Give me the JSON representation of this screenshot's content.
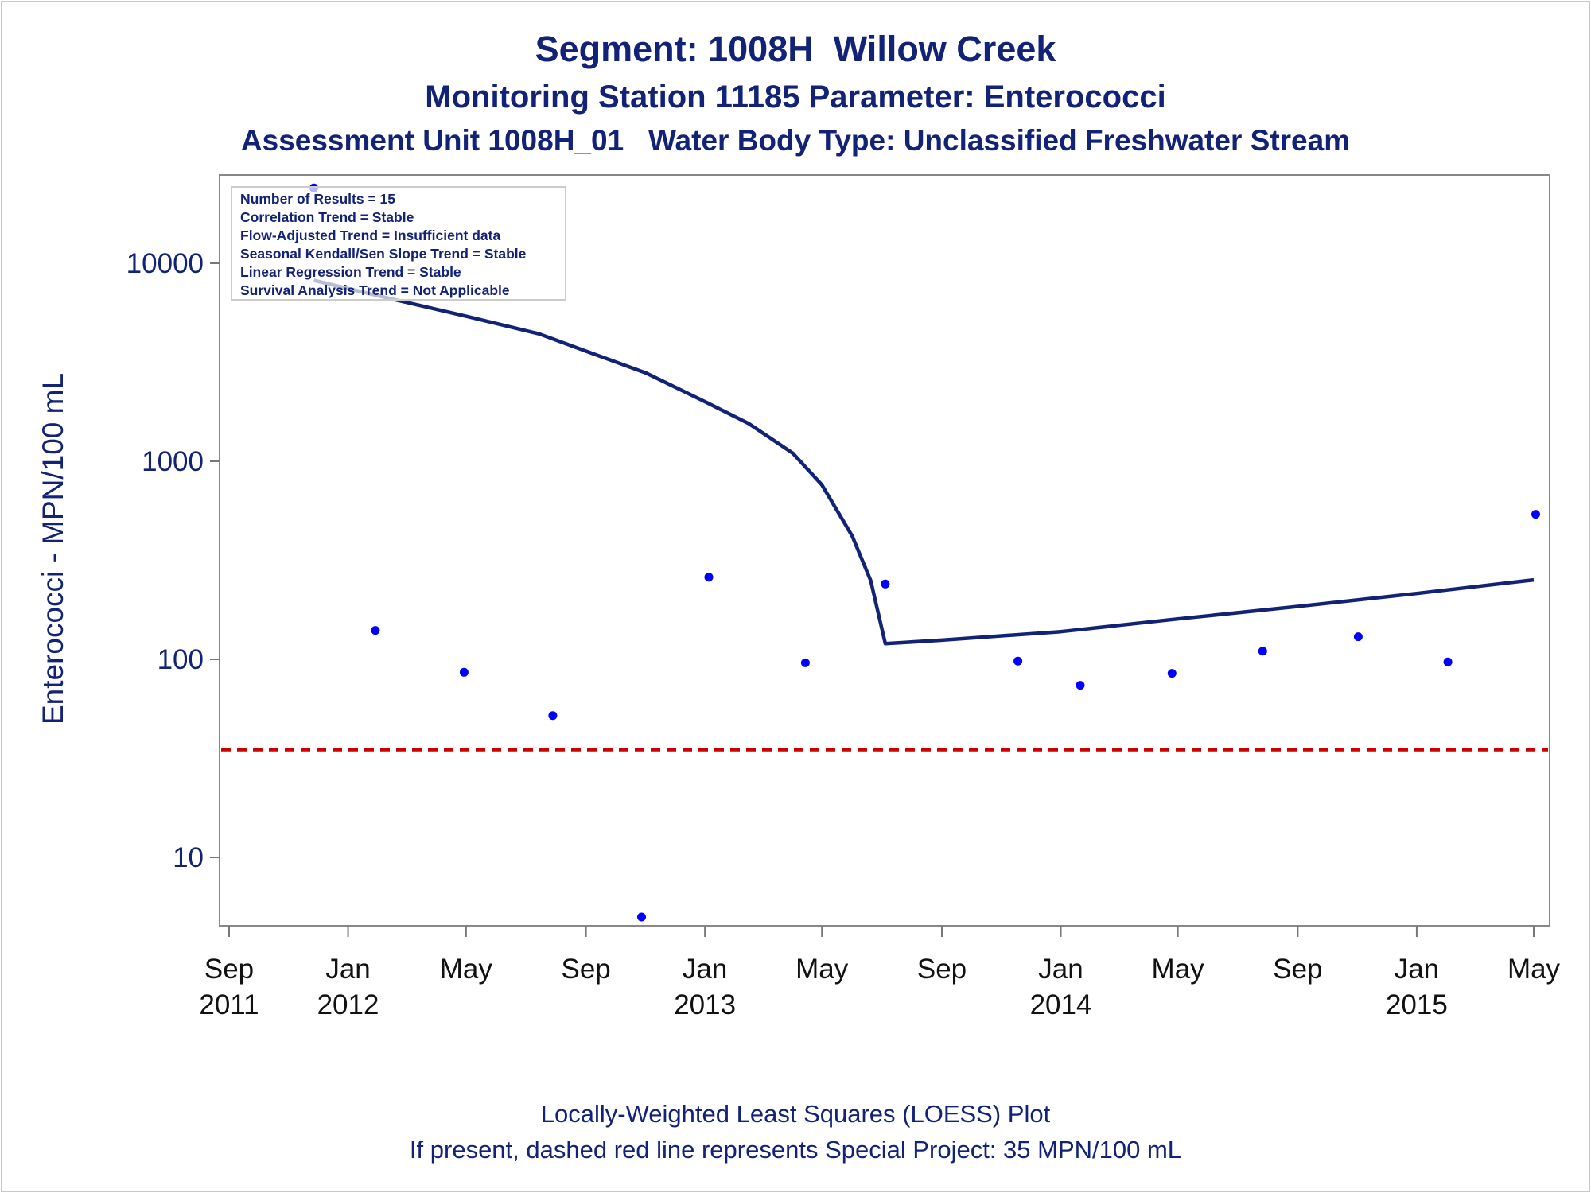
{
  "header": {
    "title": "Segment: 1008H  Willow Creek",
    "subtitle": "Monitoring Station 11185 Parameter: Enterococci",
    "subtitle2": "Assessment Unit 1008H_01   Water Body Type: Unclassified Freshwater Stream"
  },
  "footer": {
    "line1": "Locally-Weighted Least Squares (LOESS) Plot",
    "line2": "If present, dashed red line represents Special Project: 35 MPN/100 mL"
  },
  "stats_box": [
    "Number of Results = 15",
    "Correlation Trend = Stable",
    "Flow-Adjusted Trend = Insufficient data",
    "Seasonal Kendall/Sen Slope Trend = Stable",
    "Linear Regression Trend = Stable",
    "Survival Analysis Trend = Not Applicable"
  ],
  "colors": {
    "points": "#0000ff",
    "loess": "#112277",
    "reference": "#cc0000",
    "text": "#112277"
  },
  "chart_data": {
    "type": "scatter",
    "ylabel": "Enterococci - MPN/100 mL",
    "xlabel": "",
    "yscale": "log",
    "ylim": [
      4.5,
      25000
    ],
    "xlim": [
      "2011-08-25",
      "2015-05-01"
    ],
    "y_ticks": [
      10,
      100,
      1000,
      10000
    ],
    "y_tick_labels": [
      "10",
      "100",
      "1000",
      "10000"
    ],
    "x_ticks": [
      {
        "date": "2011-09-01",
        "month": "Sep",
        "year": "2011"
      },
      {
        "date": "2012-01-01",
        "month": "Jan",
        "year": "2012"
      },
      {
        "date": "2012-05-01",
        "month": "May",
        "year": ""
      },
      {
        "date": "2012-09-01",
        "month": "Sep",
        "year": ""
      },
      {
        "date": "2013-01-01",
        "month": "Jan",
        "year": "2013"
      },
      {
        "date": "2013-05-01",
        "month": "May",
        "year": ""
      },
      {
        "date": "2013-09-01",
        "month": "Sep",
        "year": ""
      },
      {
        "date": "2014-01-01",
        "month": "Jan",
        "year": "2014"
      },
      {
        "date": "2014-05-01",
        "month": "May",
        "year": ""
      },
      {
        "date": "2014-09-01",
        "month": "Sep",
        "year": ""
      },
      {
        "date": "2015-01-01",
        "month": "Jan",
        "year": "2015"
      },
      {
        "date": "2015-05-01",
        "month": "May",
        "year": ""
      }
    ],
    "points": [
      {
        "date": "2011-11-27",
        "value": 24000
      },
      {
        "date": "2012-01-29",
        "value": 140
      },
      {
        "date": "2012-04-29",
        "value": 86
      },
      {
        "date": "2012-07-29",
        "value": 52
      },
      {
        "date": "2012-10-28",
        "value": 5
      },
      {
        "date": "2013-01-05",
        "value": 260
      },
      {
        "date": "2013-04-14",
        "value": 96
      },
      {
        "date": "2013-07-05",
        "value": 240
      },
      {
        "date": "2013-11-18",
        "value": 98
      },
      {
        "date": "2014-01-21",
        "value": 74
      },
      {
        "date": "2014-04-25",
        "value": 85
      },
      {
        "date": "2014-07-27",
        "value": 110
      },
      {
        "date": "2014-11-02",
        "value": 130
      },
      {
        "date": "2015-02-02",
        "value": 97
      },
      {
        "date": "2015-05-03",
        "value": 540
      }
    ],
    "loess": [
      {
        "date": "2011-11-27",
        "value": 8200
      },
      {
        "date": "2012-02-15",
        "value": 6600
      },
      {
        "date": "2012-05-01",
        "value": 5400
      },
      {
        "date": "2012-07-15",
        "value": 4400
      },
      {
        "date": "2012-09-01",
        "value": 3600
      },
      {
        "date": "2012-11-01",
        "value": 2800
      },
      {
        "date": "2013-01-01",
        "value": 2000
      },
      {
        "date": "2013-02-15",
        "value": 1550
      },
      {
        "date": "2013-04-01",
        "value": 1100
      },
      {
        "date": "2013-05-01",
        "value": 760
      },
      {
        "date": "2013-06-01",
        "value": 420
      },
      {
        "date": "2013-06-20",
        "value": 250
      },
      {
        "date": "2013-07-05",
        "value": 120
      },
      {
        "date": "2013-09-01",
        "value": 125
      },
      {
        "date": "2014-01-01",
        "value": 138
      },
      {
        "date": "2014-05-01",
        "value": 160
      },
      {
        "date": "2014-09-01",
        "value": 185
      },
      {
        "date": "2015-01-01",
        "value": 215
      },
      {
        "date": "2015-05-01",
        "value": 252
      }
    ],
    "reference_line": {
      "value": 35,
      "label": "Special Project: 35 MPN/100 mL"
    }
  }
}
